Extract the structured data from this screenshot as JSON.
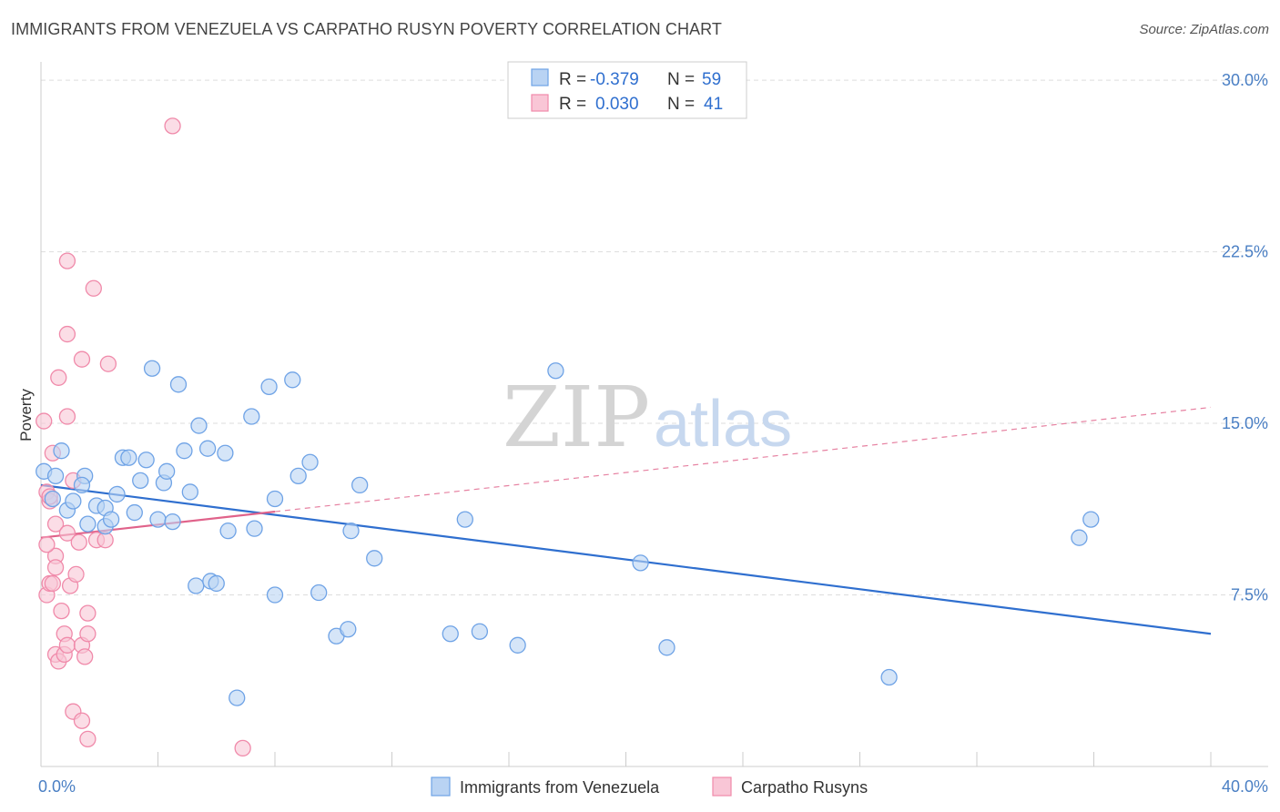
{
  "title": "IMMIGRANTS FROM VENEZUELA VS CARPATHO RUSYN POVERTY CORRELATION CHART",
  "source": "Source: ZipAtlas.com",
  "watermark": {
    "zip": "ZIP",
    "atlas": "atlas"
  },
  "colors": {
    "blue": "#6fa3e6",
    "blue_fill": "#b9d3f3",
    "blue_line": "#2f6fcf",
    "pink": "#f08aaa",
    "pink_fill": "#f9c6d6",
    "pink_line": "#e0628a",
    "grid": "#dddddd",
    "tick_text": "#4a7fc4"
  },
  "legend": {
    "rows": [
      {
        "r_label": "R =",
        "r_value": "-0.379",
        "n_label": "N =",
        "n_value": "59"
      },
      {
        "r_label": "R =",
        "r_value": "0.030",
        "n_label": "N =",
        "n_value": "41"
      }
    ]
  },
  "bottom_legend": [
    "Immigrants from Venezuela",
    "Carpatho Rusyns"
  ],
  "chart_data": {
    "type": "scatter",
    "title": "IMMIGRANTS FROM VENEZUELA VS CARPATHO RUSYN POVERTY CORRELATION CHART",
    "xlabel": "",
    "ylabel": "Poverty",
    "xlim": [
      0,
      40
    ],
    "ylim": [
      0,
      30.8
    ],
    "x_tick_labels": [
      "0.0%",
      "40.0%"
    ],
    "y_ticks": [
      7.5,
      15.0,
      22.5,
      30.0
    ],
    "y_tick_labels": [
      "7.5%",
      "15.0%",
      "22.5%",
      "30.0%"
    ],
    "grid": true,
    "legend_position": "top-center",
    "series": [
      {
        "name": "Immigrants from Venezuela",
        "r": -0.379,
        "n": 59,
        "trend": {
          "x": [
            0,
            40
          ],
          "y": [
            12.3,
            5.8
          ],
          "dashed_extension": false
        },
        "points": [
          [
            0.1,
            12.9
          ],
          [
            0.4,
            11.7
          ],
          [
            0.7,
            13.8
          ],
          [
            0.5,
            12.7
          ],
          [
            0.9,
            11.2
          ],
          [
            1.1,
            11.6
          ],
          [
            1.5,
            12.7
          ],
          [
            1.4,
            12.3
          ],
          [
            1.6,
            10.6
          ],
          [
            1.9,
            11.4
          ],
          [
            2.2,
            11.3
          ],
          [
            2.2,
            10.5
          ],
          [
            2.4,
            10.8
          ],
          [
            2.6,
            11.9
          ],
          [
            2.8,
            13.5
          ],
          [
            3.0,
            13.5
          ],
          [
            3.2,
            11.1
          ],
          [
            3.4,
            12.5
          ],
          [
            3.6,
            13.4
          ],
          [
            3.8,
            17.4
          ],
          [
            4.0,
            10.8
          ],
          [
            4.2,
            12.4
          ],
          [
            4.3,
            12.9
          ],
          [
            4.5,
            10.7
          ],
          [
            4.7,
            16.7
          ],
          [
            4.9,
            13.8
          ],
          [
            5.1,
            12.0
          ],
          [
            5.3,
            7.9
          ],
          [
            5.4,
            14.9
          ],
          [
            5.7,
            13.9
          ],
          [
            5.8,
            8.1
          ],
          [
            6.0,
            8.0
          ],
          [
            6.3,
            13.7
          ],
          [
            6.4,
            10.3
          ],
          [
            6.7,
            3.0
          ],
          [
            7.3,
            10.4
          ],
          [
            7.2,
            15.3
          ],
          [
            7.8,
            16.6
          ],
          [
            8.0,
            11.7
          ],
          [
            8.0,
            7.5
          ],
          [
            8.6,
            16.9
          ],
          [
            8.8,
            12.7
          ],
          [
            9.2,
            13.3
          ],
          [
            9.5,
            7.6
          ],
          [
            10.1,
            5.7
          ],
          [
            10.5,
            6.0
          ],
          [
            10.6,
            10.3
          ],
          [
            10.9,
            12.3
          ],
          [
            11.4,
            9.1
          ],
          [
            14.0,
            5.8
          ],
          [
            14.5,
            10.8
          ],
          [
            15.0,
            5.9
          ],
          [
            16.3,
            5.3
          ],
          [
            17.6,
            17.3
          ],
          [
            20.5,
            8.9
          ],
          [
            21.4,
            5.2
          ],
          [
            29.0,
            3.9
          ],
          [
            35.5,
            10.0
          ],
          [
            35.9,
            10.8
          ]
        ]
      },
      {
        "name": "Carpatho Rusyns",
        "r": 0.03,
        "n": 41,
        "trend": {
          "x": [
            0,
            40
          ],
          "y": [
            10.0,
            15.7
          ],
          "solid_until_x": 8.0
        },
        "points": [
          [
            0.1,
            15.1
          ],
          [
            0.2,
            12.0
          ],
          [
            0.3,
            11.6
          ],
          [
            0.4,
            13.7
          ],
          [
            0.2,
            7.5
          ],
          [
            0.3,
            8.0
          ],
          [
            0.4,
            8.0
          ],
          [
            0.5,
            10.6
          ],
          [
            0.5,
            9.2
          ],
          [
            0.5,
            8.7
          ],
          [
            0.5,
            4.9
          ],
          [
            0.6,
            4.6
          ],
          [
            0.7,
            6.8
          ],
          [
            0.8,
            5.8
          ],
          [
            0.8,
            4.9
          ],
          [
            0.9,
            5.3
          ],
          [
            0.9,
            10.2
          ],
          [
            1.0,
            7.9
          ],
          [
            1.1,
            12.5
          ],
          [
            1.2,
            8.4
          ],
          [
            1.1,
            2.4
          ],
          [
            1.3,
            9.8
          ],
          [
            0.9,
            22.1
          ],
          [
            0.6,
            17.0
          ],
          [
            0.9,
            15.3
          ],
          [
            0.9,
            18.9
          ],
          [
            1.4,
            17.8
          ],
          [
            1.4,
            5.3
          ],
          [
            1.4,
            2.0
          ],
          [
            1.5,
            4.8
          ],
          [
            1.6,
            5.8
          ],
          [
            1.6,
            1.2
          ],
          [
            1.6,
            6.7
          ],
          [
            1.8,
            20.9
          ],
          [
            1.9,
            9.9
          ],
          [
            2.3,
            17.6
          ],
          [
            2.2,
            9.9
          ],
          [
            4.5,
            28.0
          ],
          [
            6.9,
            0.8
          ],
          [
            0.2,
            9.7
          ],
          [
            0.3,
            11.8
          ]
        ]
      }
    ]
  }
}
